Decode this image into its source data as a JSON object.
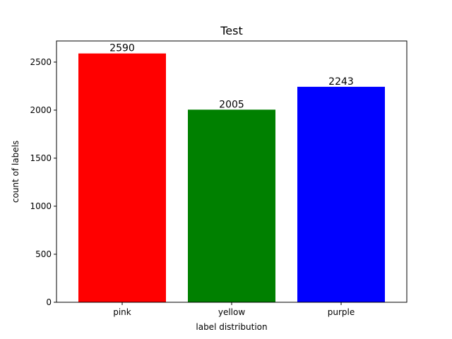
{
  "chart_data": {
    "type": "bar",
    "title": "Test",
    "xlabel": "label distribution",
    "ylabel": "count of labels",
    "categories": [
      "pink",
      "yellow",
      "purple"
    ],
    "values": [
      2590,
      2005,
      2243
    ],
    "data_labels": [
      "2590",
      "2005",
      "2243"
    ],
    "colors": [
      "#ff0000",
      "#008000",
      "#0000ff"
    ],
    "ylim": [
      0,
      2720
    ],
    "yticks": [
      0,
      500,
      1000,
      1500,
      2000,
      2500
    ],
    "ytick_labels": [
      "0",
      "500",
      "1000",
      "1500",
      "2000",
      "2500"
    ],
    "grid": false,
    "legend": false
  }
}
